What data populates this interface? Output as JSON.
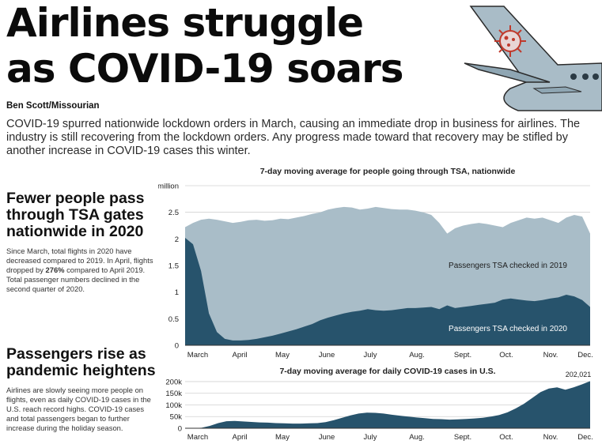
{
  "headline": {
    "line1": "Airlines struggle",
    "line2": "as COVID-19 soars"
  },
  "byline": "Ben Scott/Missourian",
  "intro": "COVID-19 spurred nationwide lockdown orders in March, causing an immediate drop in business for airlines. The industry is still recovering from the lockdown orders. Any progress made toward that recovery may be stifled by another increase in COVID-19 cases this winter.",
  "section1": {
    "title": "Fewer people pass through TSA gates nationwide in 2020",
    "body_pre": "Since March, total flights in 2020 have decreased compared to 2019. In April, flights dropped by ",
    "body_bold": "276%",
    "body_post": " compared to April 2019. Total passenger numbers declined in the second quarter of 2020."
  },
  "section2": {
    "title": "Passengers rise as pandemic heightens",
    "body": "Airlines are slowly seeing more people on flights, even as daily COVID-19 cases in the U.S. reach record highs. COVID-19 cases and total passengers began to further increase during the holiday season."
  },
  "colors": {
    "series_2019": "#a9bdc8",
    "series_2020": "#27536c",
    "plane_body": "#a9bcc7",
    "virus": "#c0392b"
  },
  "icons": [
    "airplane-tail-icon",
    "coronavirus-icon"
  ],
  "chart_data": [
    {
      "type": "area",
      "title": "7-day moving average for people going through TSA, nationwide",
      "xlabel": "",
      "ylabel": "",
      "x_ticks": [
        "March",
        "April",
        "May",
        "June",
        "July",
        "Aug.",
        "Sept.",
        "Oct.",
        "Nov.",
        "Dec."
      ],
      "y_ticks": [
        "0",
        "0.5",
        "1",
        "1.5",
        "2",
        "2.5",
        "3 million"
      ],
      "ylim": [
        0,
        3
      ],
      "grid": true,
      "series": [
        {
          "name": "Passengers TSA checked in 2019",
          "values": [
            2.22,
            2.3,
            2.36,
            2.38,
            2.36,
            2.33,
            2.3,
            2.32,
            2.35,
            2.36,
            2.34,
            2.35,
            2.38,
            2.37,
            2.4,
            2.43,
            2.47,
            2.5,
            2.55,
            2.58,
            2.6,
            2.59,
            2.55,
            2.57,
            2.6,
            2.58,
            2.56,
            2.55,
            2.55,
            2.53,
            2.5,
            2.45,
            2.3,
            2.1,
            2.2,
            2.25,
            2.28,
            2.3,
            2.28,
            2.25,
            2.22,
            2.3,
            2.35,
            2.4,
            2.38,
            2.4,
            2.35,
            2.3,
            2.4,
            2.45,
            2.42,
            2.1
          ]
        },
        {
          "name": "Passengers TSA checked in 2020",
          "values": [
            2.02,
            1.9,
            1.4,
            0.6,
            0.25,
            0.12,
            0.09,
            0.09,
            0.1,
            0.12,
            0.15,
            0.18,
            0.22,
            0.26,
            0.3,
            0.35,
            0.4,
            0.47,
            0.52,
            0.56,
            0.6,
            0.63,
            0.65,
            0.68,
            0.66,
            0.65,
            0.66,
            0.68,
            0.7,
            0.7,
            0.71,
            0.72,
            0.68,
            0.75,
            0.7,
            0.72,
            0.74,
            0.76,
            0.78,
            0.8,
            0.86,
            0.88,
            0.86,
            0.84,
            0.83,
            0.85,
            0.88,
            0.9,
            0.95,
            0.92,
            0.85,
            0.72
          ]
        }
      ]
    },
    {
      "type": "area",
      "title": "7-day moving average for daily COVID-19 cases in U.S.",
      "xlabel": "",
      "ylabel": "",
      "x_ticks": [
        "March",
        "April",
        "May",
        "June",
        "July",
        "Aug.",
        "Sept.",
        "Oct.",
        "Nov.",
        "Dec."
      ],
      "y_ticks": [
        "0",
        "50k",
        "100k",
        "150k",
        "200k"
      ],
      "ylim": [
        0,
        210000
      ],
      "annotation": "202,021",
      "series": [
        {
          "name": "",
          "values": [
            100,
            500,
            2000,
            10000,
            22000,
            30000,
            31000,
            29000,
            27000,
            25000,
            24000,
            22000,
            21000,
            20000,
            20000,
            21000,
            22000,
            26000,
            35000,
            45000,
            55000,
            63000,
            67000,
            66000,
            63000,
            58000,
            54000,
            50000,
            46000,
            43000,
            40000,
            39000,
            37000,
            38000,
            40000,
            42000,
            45000,
            50000,
            57000,
            68000,
            85000,
            105000,
            130000,
            155000,
            170000,
            175000,
            165000,
            175000,
            188000,
            202021
          ]
        }
      ]
    }
  ]
}
